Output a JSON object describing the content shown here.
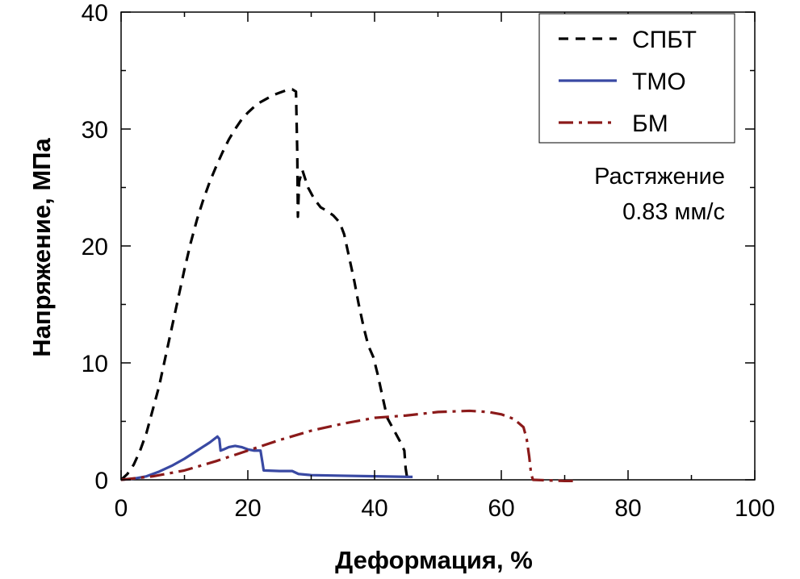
{
  "chart_data": {
    "type": "line",
    "title": "",
    "xlabel": "Деформация, %",
    "ylabel": "Напряжение, МПа",
    "xlim": [
      0,
      100
    ],
    "ylim": [
      0,
      40
    ],
    "xticks": [
      0,
      20,
      40,
      60,
      80,
      100
    ],
    "yticks": [
      0,
      10,
      20,
      30,
      40
    ],
    "x_tick_labels": [
      "0",
      "20",
      "40",
      "60",
      "80",
      "100"
    ],
    "y_tick_labels": [
      "0",
      "10",
      "20",
      "30",
      "40"
    ],
    "grid": false,
    "legend_position": "top-right",
    "annotation": {
      "line1": "Растяжение",
      "line2": "0.83 мм/с"
    },
    "series": [
      {
        "name": "СПБТ",
        "color": "#000000",
        "style": "dashed",
        "points": [
          [
            0,
            0
          ],
          [
            1,
            0.5
          ],
          [
            2,
            1.3
          ],
          [
            3,
            2.5
          ],
          [
            4,
            4
          ],
          [
            5,
            6
          ],
          [
            6,
            8
          ],
          [
            7,
            10.5
          ],
          [
            8,
            13
          ],
          [
            9,
            15.5
          ],
          [
            10,
            18
          ],
          [
            11,
            20.3
          ],
          [
            12,
            22.3
          ],
          [
            13,
            24
          ],
          [
            14,
            25.5
          ],
          [
            15,
            26.8
          ],
          [
            16,
            28
          ],
          [
            17,
            29.1
          ],
          [
            18,
            30
          ],
          [
            19,
            30.8
          ],
          [
            20,
            31.4
          ],
          [
            21,
            31.9
          ],
          [
            22,
            32.3
          ],
          [
            23,
            32.6
          ],
          [
            24,
            32.9
          ],
          [
            25,
            33.1
          ],
          [
            26,
            33.3
          ],
          [
            27,
            33.4
          ],
          [
            27.6,
            33.2
          ],
          [
            27.8,
            28
          ],
          [
            27.9,
            22.5
          ],
          [
            28.1,
            25.5
          ],
          [
            28.6,
            26.5
          ],
          [
            29.5,
            25
          ],
          [
            30.5,
            24
          ],
          [
            31.5,
            23.3
          ],
          [
            32.5,
            23
          ],
          [
            33.5,
            22.6
          ],
          [
            34.5,
            22
          ],
          [
            35.2,
            21
          ],
          [
            36,
            19
          ],
          [
            36.8,
            17
          ],
          [
            37.5,
            15
          ],
          [
            38.3,
            13
          ],
          [
            39,
            11.5
          ],
          [
            39.8,
            10.5
          ],
          [
            40.5,
            9
          ],
          [
            41.3,
            7
          ],
          [
            42,
            5.3
          ],
          [
            43,
            4.3
          ],
          [
            44,
            3.3
          ],
          [
            44.7,
            2.5
          ],
          [
            44.9,
            1
          ],
          [
            45.1,
            0.3
          ]
        ]
      },
      {
        "name": "ТМО",
        "color": "#3949a3",
        "style": "solid",
        "points": [
          [
            0,
            0
          ],
          [
            2,
            0.1
          ],
          [
            4,
            0.3
          ],
          [
            6,
            0.7
          ],
          [
            8,
            1.2
          ],
          [
            10,
            1.8
          ],
          [
            12,
            2.5
          ],
          [
            14,
            3.2
          ],
          [
            15.2,
            3.7
          ],
          [
            15.5,
            3.5
          ],
          [
            15.7,
            2.5
          ],
          [
            16.2,
            2.6
          ],
          [
            17,
            2.8
          ],
          [
            18,
            2.9
          ],
          [
            19,
            2.8
          ],
          [
            20,
            2.6
          ],
          [
            21,
            2.5
          ],
          [
            22,
            2.5
          ],
          [
            22.3,
            1.5
          ],
          [
            22.5,
            0.8
          ],
          [
            25,
            0.75
          ],
          [
            27,
            0.75
          ],
          [
            28,
            0.5
          ],
          [
            30,
            0.4
          ],
          [
            35,
            0.35
          ],
          [
            40,
            0.3
          ],
          [
            46,
            0.25
          ]
        ]
      },
      {
        "name": "БМ",
        "color": "#8b1a1a",
        "style": "dash-dot",
        "points": [
          [
            0,
            0
          ],
          [
            5,
            0.3
          ],
          [
            10,
            0.8
          ],
          [
            15,
            1.6
          ],
          [
            20,
            2.5
          ],
          [
            25,
            3.4
          ],
          [
            30,
            4.2
          ],
          [
            35,
            4.8
          ],
          [
            40,
            5.3
          ],
          [
            45,
            5.5
          ],
          [
            50,
            5.8
          ],
          [
            55,
            5.9
          ],
          [
            58,
            5.8
          ],
          [
            60,
            5.6
          ],
          [
            62,
            5.2
          ],
          [
            63.5,
            4.5
          ],
          [
            64,
            3.5
          ],
          [
            64.4,
            2
          ],
          [
            64.7,
            0.5
          ],
          [
            65,
            0
          ],
          [
            70,
            -0.1
          ],
          [
            71.5,
            -0.1
          ]
        ]
      }
    ]
  }
}
